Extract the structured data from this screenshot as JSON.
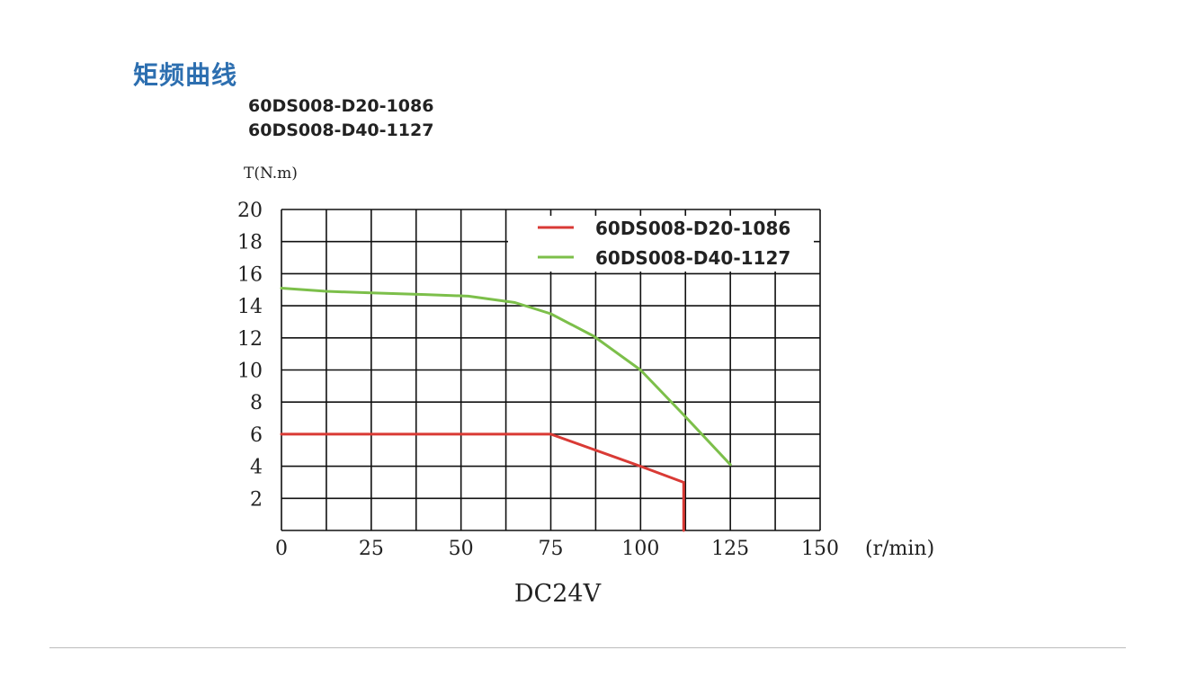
{
  "page": {
    "title": "矩频曲线",
    "models": [
      "60DS008-D20-1086",
      "60DS008-D40-1127"
    ],
    "footer_rule": true
  },
  "chart_data": {
    "type": "line",
    "ylabel": "T(N.m)",
    "xlabel": "(r/min)",
    "caption": "DC24V",
    "xlim": [
      0,
      150
    ],
    "ylim": [
      0,
      20
    ],
    "x_ticks": [
      0,
      25,
      50,
      75,
      100,
      125,
      150
    ],
    "y_ticks": [
      2,
      4,
      6,
      8,
      10,
      12,
      14,
      16,
      18,
      20
    ],
    "x_grid_step": 12.5,
    "y_grid_step": 2,
    "grid": true,
    "legend_position": "top-right",
    "colors": {
      "D20": "#d93a35",
      "D40": "#7cbf4a",
      "grid": "#111111"
    },
    "series": [
      {
        "name": "60DS008-D20-1086",
        "color": "#d93a35",
        "points": [
          [
            0,
            6.0
          ],
          [
            75,
            6.0
          ],
          [
            100,
            4.0
          ],
          [
            112,
            3.0
          ],
          [
            112,
            0
          ]
        ]
      },
      {
        "name": "60DS008-D40-1127",
        "color": "#7cbf4a",
        "points": [
          [
            0,
            15.1
          ],
          [
            12.5,
            14.9
          ],
          [
            25,
            14.8
          ],
          [
            40,
            14.7
          ],
          [
            52,
            14.6
          ],
          [
            65,
            14.2
          ],
          [
            75,
            13.5
          ],
          [
            87,
            12.1
          ],
          [
            100,
            10.0
          ],
          [
            112,
            7.2
          ],
          [
            125,
            4.1
          ]
        ]
      }
    ]
  }
}
